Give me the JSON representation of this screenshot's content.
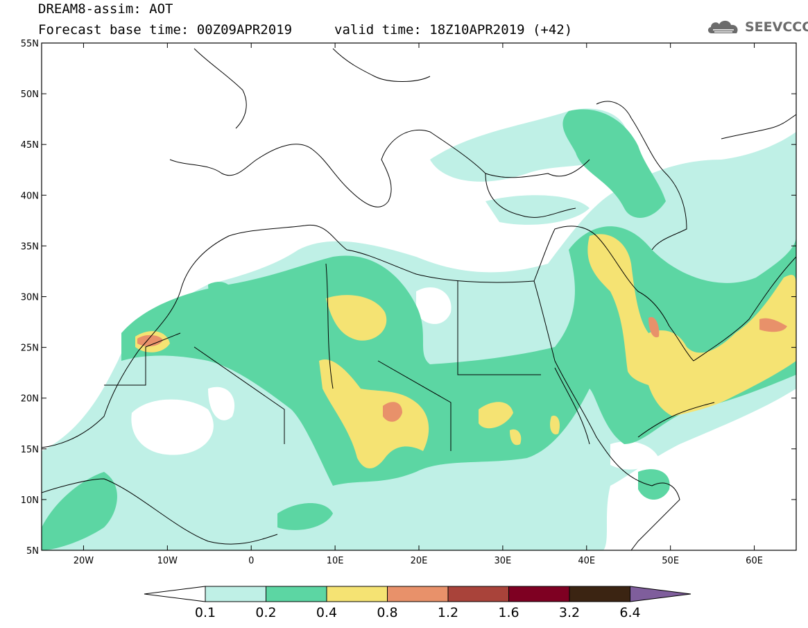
{
  "header": {
    "line1": "DREAM8-assim: AOT",
    "line2_base": "Forecast base time: 00Z09APR2019",
    "line2_valid": "valid time: 18Z10APR2019 (+42)"
  },
  "logo": {
    "text": "SEEVCCC",
    "icon": "cloud-logo-icon"
  },
  "map": {
    "lon_range": [
      -25,
      65
    ],
    "lat_range": [
      5,
      55
    ],
    "lat_ticks": [
      "55N",
      "50N",
      "45N",
      "40N",
      "35N",
      "30N",
      "25N",
      "20N",
      "15N",
      "10N",
      "5N"
    ],
    "lon_ticks": [
      "20W",
      "10W",
      "0",
      "10E",
      "20E",
      "30E",
      "40E",
      "50E",
      "60E"
    ]
  },
  "colorbar": {
    "labels": [
      "0.1",
      "0.2",
      "0.4",
      "0.8",
      "1.2",
      "1.6",
      "3.2",
      "6.4"
    ],
    "colors": [
      "#ffffff",
      "#bff0e6",
      "#5cd6a3",
      "#f5e373",
      "#e8916a",
      "#a9433a",
      "#7e0022",
      "#3b2412",
      "#7f5e9c"
    ]
  }
}
